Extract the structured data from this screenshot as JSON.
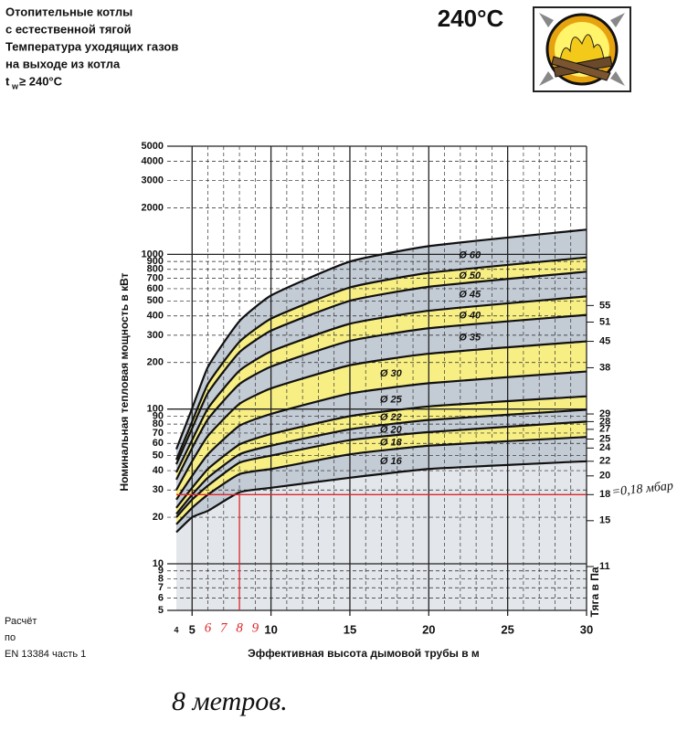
{
  "header": {
    "lines": [
      "Отопительные котлы",
      "с естественной тягой",
      "Температура уходящих газов",
      "на выходе из котла"
    ],
    "temp_symbol": "t",
    "temp_sub": "w",
    "temp_value": "≥ 240°C",
    "big_temp": "240°C"
  },
  "footnote": [
    "Расчёт",
    "по",
    "EN 13384 часть 1"
  ],
  "handwriting": {
    "result": "8 метров.",
    "draft_note": "=0,18 мбар"
  },
  "chart_data": {
    "type": "band",
    "xlabel": "Эффективная высота дымовой трубы в м",
    "ylabel": "Номинальная тепловая мощность в кВт",
    "y2label": "Тяга в Па",
    "x": [
      4,
      5,
      6,
      8,
      10,
      15,
      20,
      30
    ],
    "curves": [
      {
        "values": [
          55,
          101,
          187,
          370,
          542,
          898,
          1130,
          1445
        ]
      },
      {
        "values": [
          47,
          83,
          145,
          272,
          384,
          611,
          759,
          955
        ]
      },
      {
        "values": [
          44,
          75,
          127,
          233,
          321,
          501,
          617,
          773
        ]
      },
      {
        "values": [
          39,
          63,
          101,
          177,
          236,
          356,
          432,
          535
        ]
      },
      {
        "values": [
          35,
          56,
          86,
          145,
          188,
          276,
          333,
          406
        ]
      },
      {
        "values": [
          30,
          46,
          67,
          108,
          136,
          192,
          228,
          274
        ]
      },
      {
        "values": [
          26,
          37,
          51,
          78,
          93,
          126,
          147,
          175
        ]
      },
      {
        "values": [
          23,
          31,
          41,
          59,
          69,
          90,
          104,
          121
        ]
      },
      {
        "values": [
          21,
          28,
          36,
          51,
          58,
          74,
          85,
          99
        ]
      },
      {
        "values": [
          20,
          26,
          32,
          45,
          50,
          63,
          71,
          83
        ]
      },
      {
        "values": [
          18,
          23,
          28,
          38,
          41,
          51,
          58,
          66
        ]
      },
      {
        "values": [
          16,
          20,
          22,
          29,
          31,
          36,
          41,
          46
        ]
      }
    ],
    "bands": [
      {
        "name": "Ø 60",
        "color": "#c3cbd5"
      },
      {
        "name": "Ø 50",
        "color": "#f8ef84"
      },
      {
        "name": "Ø 45",
        "color": "#c3cbd5"
      },
      {
        "name": "Ø 40",
        "color": "#f8ef84"
      },
      {
        "name": "Ø 35",
        "color": "#c3cbd5"
      },
      {
        "name": "Ø 30",
        "color": "#f8ef84"
      },
      {
        "name": "Ø 25",
        "color": "#c3cbd5"
      },
      {
        "name": "Ø 22",
        "color": "#f8ef84"
      },
      {
        "name": "Ø 20",
        "color": "#c3cbd5"
      },
      {
        "name": "Ø 18",
        "color": "#f8ef84"
      },
      {
        "name": "Ø 16",
        "color": "#c3cbd5"
      }
    ],
    "xlim": [
      4,
      30
    ],
    "xticks": [
      4,
      5,
      10,
      15,
      20,
      25,
      30
    ],
    "xminorticks": [
      6,
      7,
      8,
      9,
      11,
      12,
      13,
      14,
      16,
      17,
      18,
      19,
      21,
      22,
      23,
      24,
      26,
      27,
      28,
      29
    ],
    "ylim": [
      5,
      5000
    ],
    "ylog": true,
    "yticks": [
      5,
      6,
      7,
      8,
      9,
      10,
      20,
      30,
      40,
      50,
      60,
      70,
      80,
      90,
      100,
      200,
      300,
      400,
      500,
      600,
      700,
      800,
      900,
      1000,
      2000,
      3000,
      4000,
      5000
    ],
    "y2ticks": [
      55,
      51,
      45,
      38,
      29,
      28,
      27,
      25,
      24,
      22,
      20,
      18,
      15,
      11
    ],
    "y2ticks_at": [
      467,
      365,
      274,
      185,
      93,
      83,
      74,
      64,
      56,
      46,
      37,
      28,
      19,
      9.6
    ],
    "selection": {
      "x": 8,
      "y": 28,
      "color": "#e0262a",
      "xticks": [
        6,
        7,
        8,
        9
      ]
    }
  }
}
